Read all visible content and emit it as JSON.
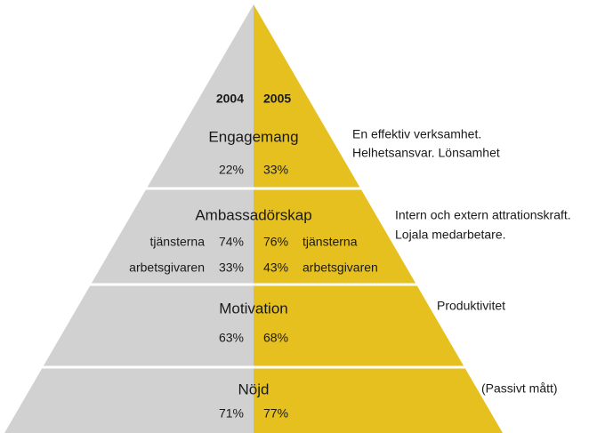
{
  "years": [
    "2004",
    "2005"
  ],
  "levels": [
    {
      "name": "Engagemang",
      "left": "22%",
      "right": "33%",
      "description": [
        "En effektiv verksamhet.",
        "Helhetsansvar. Lönsamhet"
      ]
    },
    {
      "name": "Ambassadörskap",
      "rows": [
        {
          "label": "tjänsterna",
          "left": "74%",
          "right": "76%"
        },
        {
          "label": "arbetsgivaren",
          "left": "33%",
          "right": "43%"
        }
      ],
      "description": [
        "Intern och extern attrationskraft.",
        "Lojala medarbetare."
      ]
    },
    {
      "name": "Motivation",
      "left": "63%",
      "right": "68%",
      "description": [
        "Produktivitet"
      ]
    },
    {
      "name": "Nöjd",
      "left": "71%",
      "right": "77%",
      "description": [
        "(Passivt mått)"
      ]
    }
  ]
}
